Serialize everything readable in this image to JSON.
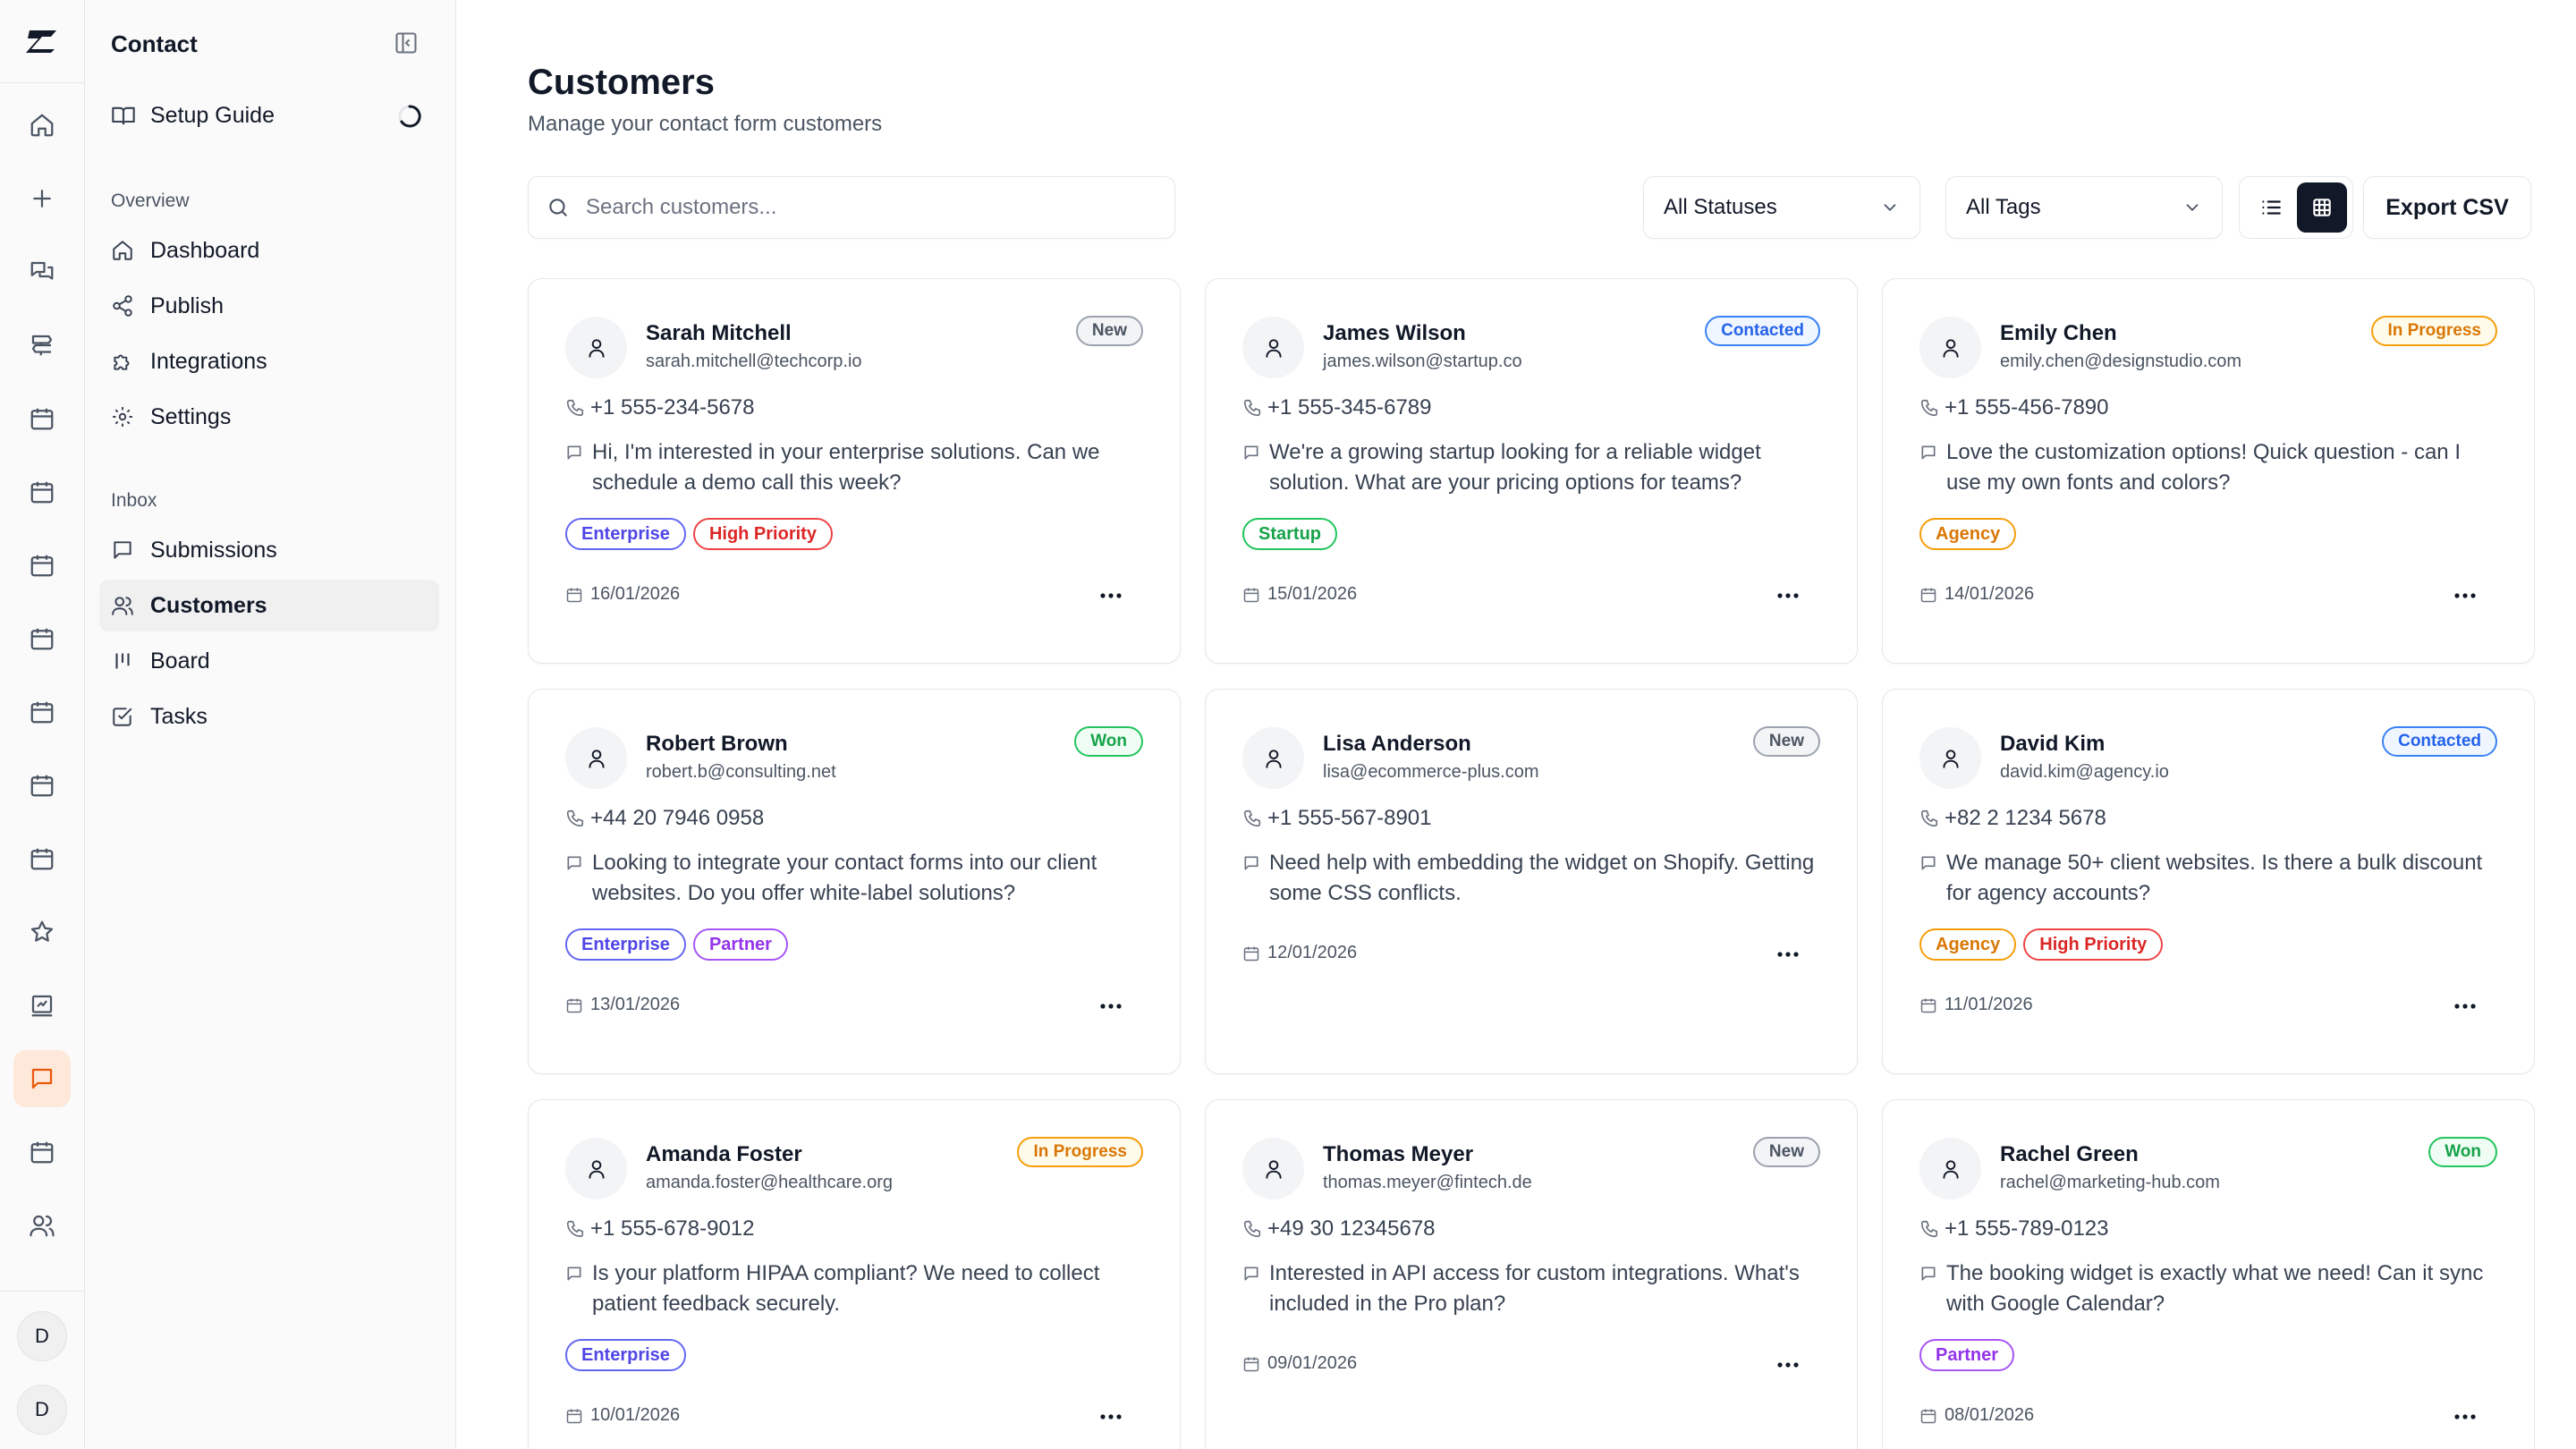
{
  "rail": {
    "logo": "brand-logo",
    "avatars": [
      "D",
      "D"
    ]
  },
  "sidebar": {
    "title": "Contact",
    "setup_guide": "Setup Guide",
    "overview_label": "Overview",
    "overview_items": [
      {
        "label": "Dashboard",
        "icon": "home-icon"
      },
      {
        "label": "Publish",
        "icon": "share-icon"
      },
      {
        "label": "Integrations",
        "icon": "puzzle-icon"
      },
      {
        "label": "Settings",
        "icon": "gear-icon"
      }
    ],
    "inbox_label": "Inbox",
    "inbox_items": [
      {
        "label": "Submissions",
        "icon": "message-icon"
      },
      {
        "label": "Customers",
        "icon": "users-icon",
        "active": true
      },
      {
        "label": "Board",
        "icon": "kanban-icon"
      },
      {
        "label": "Tasks",
        "icon": "check-square-icon"
      }
    ]
  },
  "main": {
    "title": "Customers",
    "subtitle": "Manage your contact form customers",
    "search_placeholder": "Search customers...",
    "status_filter": "All Statuses",
    "tag_filter": "All Tags",
    "export_label": "Export CSV",
    "view_mode": "grid"
  },
  "colors": {
    "accent": "#ea580c",
    "status": {
      "New": {
        "fg": "#4b5563",
        "border": "#9ca3af",
        "bg": "#f3f4f6"
      },
      "Contacted": {
        "fg": "#2563eb",
        "border": "#3b82f6",
        "bg": "#eff6ff"
      },
      "In Progress": {
        "fg": "#d97706",
        "border": "#f59e0b",
        "bg": "#fffbeb"
      },
      "Won": {
        "fg": "#16a34a",
        "border": "#22c55e",
        "bg": "#f0fdf4"
      }
    },
    "tags": {
      "Enterprise": {
        "fg": "#4f46e5",
        "border": "#6366f1"
      },
      "High Priority": {
        "fg": "#dc2626",
        "border": "#ef4444"
      },
      "Startup": {
        "fg": "#16a34a",
        "border": "#22c55e"
      },
      "Agency": {
        "fg": "#d97706",
        "border": "#f59e0b"
      },
      "Partner": {
        "fg": "#9333ea",
        "border": "#a855f7"
      }
    }
  },
  "customers": [
    {
      "name": "Sarah Mitchell",
      "email": "sarah.mitchell@techcorp.io",
      "status": "New",
      "phone": "+1 555-234-5678",
      "message": "Hi, I'm interested in your enterprise solutions. Can we schedule a demo call this week?",
      "tags": [
        "Enterprise",
        "High Priority"
      ],
      "date": "16/01/2026"
    },
    {
      "name": "James Wilson",
      "email": "james.wilson@startup.co",
      "status": "Contacted",
      "phone": "+1 555-345-6789",
      "message": "We're a growing startup looking for a reliable widget solution. What are your pricing options for teams?",
      "tags": [
        "Startup"
      ],
      "date": "15/01/2026"
    },
    {
      "name": "Emily Chen",
      "email": "emily.chen@designstudio.com",
      "status": "In Progress",
      "phone": "+1 555-456-7890",
      "message": "Love the customization options! Quick question - can I use my own fonts and colors?",
      "tags": [
        "Agency"
      ],
      "date": "14/01/2026"
    },
    {
      "name": "Robert Brown",
      "email": "robert.b@consulting.net",
      "status": "Won",
      "phone": "+44 20 7946 0958",
      "message": "Looking to integrate your contact forms into our client websites. Do you offer white-label solutions?",
      "tags": [
        "Enterprise",
        "Partner"
      ],
      "date": "13/01/2026"
    },
    {
      "name": "Lisa Anderson",
      "email": "lisa@ecommerce-plus.com",
      "status": "New",
      "phone": "+1 555-567-8901",
      "message": "Need help with embedding the widget on Shopify. Getting some CSS conflicts.",
      "tags": [],
      "date": "12/01/2026"
    },
    {
      "name": "David Kim",
      "email": "david.kim@agency.io",
      "status": "Contacted",
      "phone": "+82 2 1234 5678",
      "message": "We manage 50+ client websites. Is there a bulk discount for agency accounts?",
      "tags": [
        "Agency",
        "High Priority"
      ],
      "date": "11/01/2026"
    },
    {
      "name": "Amanda Foster",
      "email": "amanda.foster@healthcare.org",
      "status": "In Progress",
      "phone": "+1 555-678-9012",
      "message": "Is your platform HIPAA compliant? We need to collect patient feedback securely.",
      "tags": [
        "Enterprise"
      ],
      "date": "10/01/2026"
    },
    {
      "name": "Thomas Meyer",
      "email": "thomas.meyer@fintech.de",
      "status": "New",
      "phone": "+49 30 12345678",
      "message": "Interested in API access for custom integrations. What's included in the Pro plan?",
      "tags": [],
      "date": "09/01/2026"
    },
    {
      "name": "Rachel Green",
      "email": "rachel@marketing-hub.com",
      "status": "Won",
      "phone": "+1 555-789-0123",
      "message": "The booking widget is exactly what we need! Can it sync with Google Calendar?",
      "tags": [
        "Partner"
      ],
      "date": "08/01/2026"
    }
  ]
}
